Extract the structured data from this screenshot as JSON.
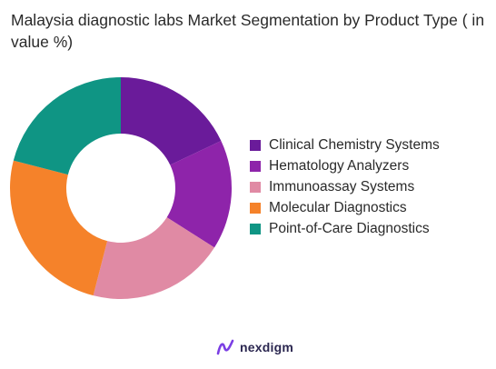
{
  "chart_data": {
    "type": "pie",
    "title": "Malaysia diagnostic labs Market Segmentation by Product Type ( in value %)",
    "categories": [
      "Clinical Chemistry Systems",
      "Hematology Analyzers",
      "Immunoassay Systems",
      "Molecular Diagnostics",
      "Point-of-Care Diagnostics"
    ],
    "values": [
      18,
      16,
      20,
      25,
      21
    ],
    "colors": [
      "#6a1b9a",
      "#8e24aa",
      "#e08aa4",
      "#f5822a",
      "#0f9584"
    ],
    "hole": true,
    "legend": "right"
  },
  "brand": {
    "name": "nexdigm",
    "logo_icon": "nexdigm-logo-icon",
    "accent": "#7b3fe4"
  }
}
